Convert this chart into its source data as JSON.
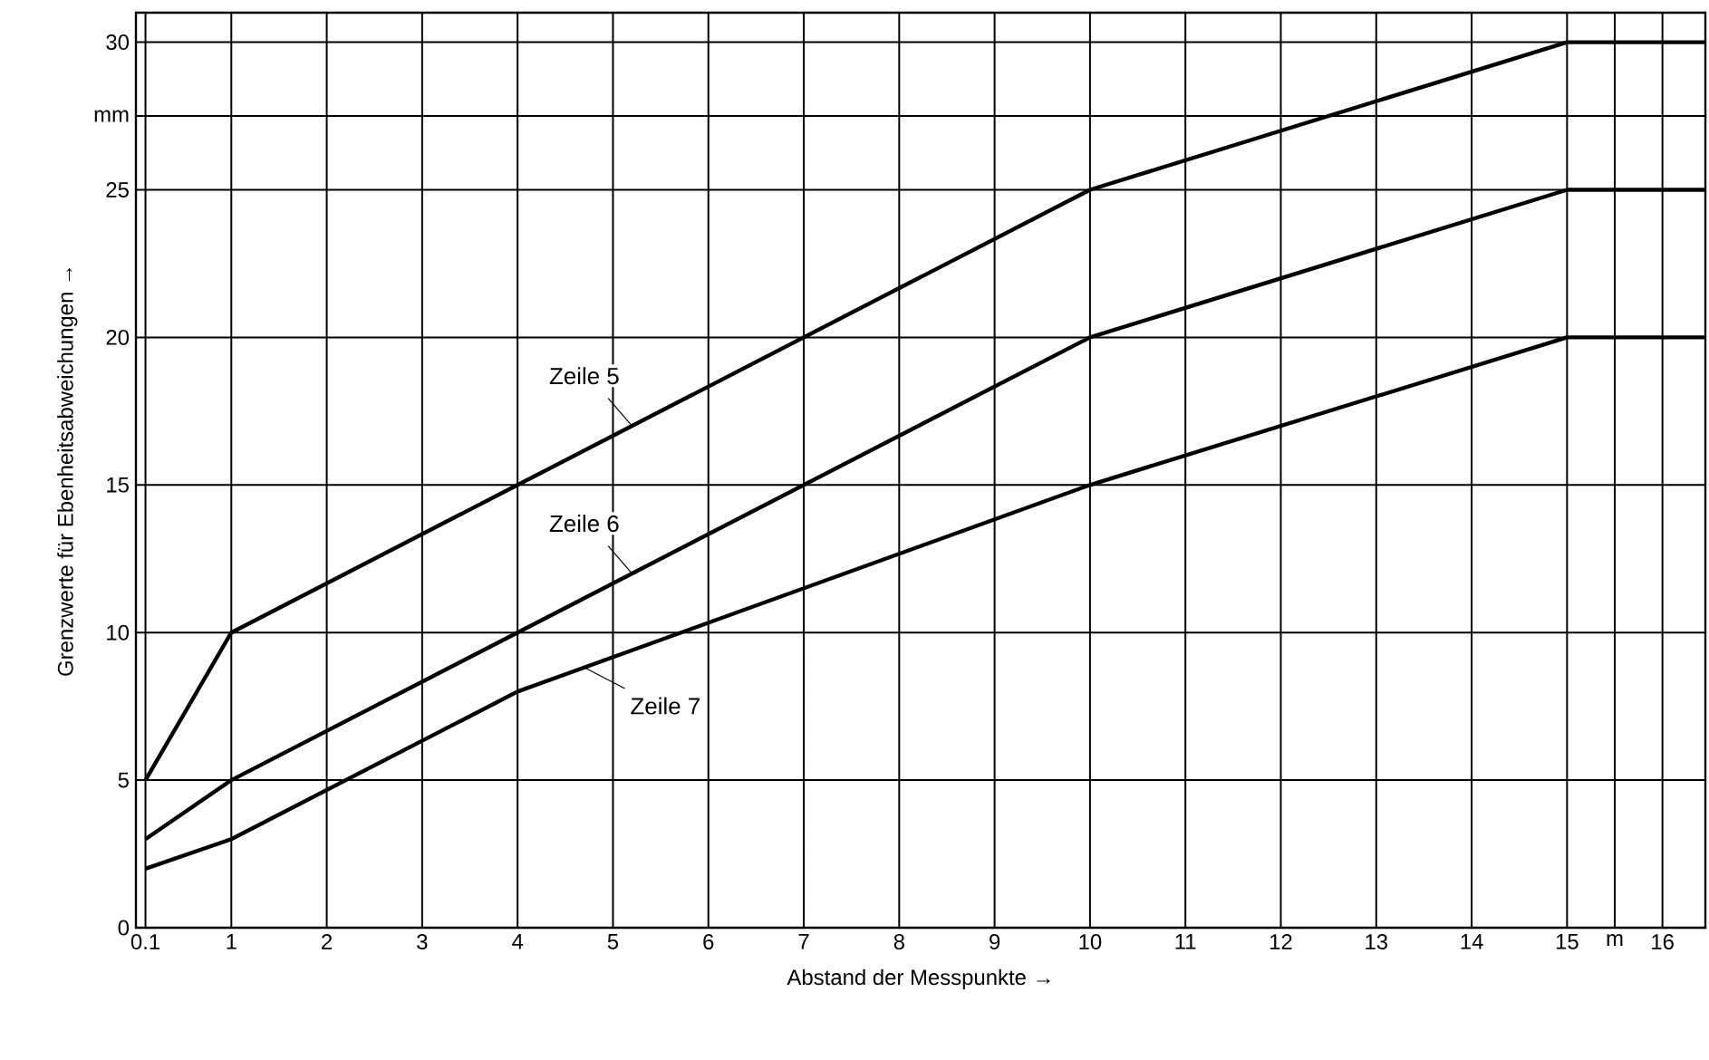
{
  "chart_data": {
    "type": "line",
    "xlabel": "Abstand der Messpunkte →",
    "ylabel": "Grenzwerte für Ebenheitsabweichungen →",
    "series": [
      {
        "name": "Zeile 5",
        "color": "#000000",
        "x": [
          0.1,
          1,
          4,
          10,
          15,
          16.45
        ],
        "values": [
          5,
          10,
          15,
          25,
          30,
          30
        ]
      },
      {
        "name": "Zeile 6",
        "color": "#000000",
        "x": [
          0.1,
          1,
          4,
          10,
          15,
          16.45
        ],
        "values": [
          3,
          5,
          10,
          20,
          25,
          25
        ]
      },
      {
        "name": "Zeile 7",
        "color": "#000000",
        "x": [
          0.1,
          1,
          4,
          10,
          15,
          16.45
        ],
        "values": [
          2,
          3,
          8,
          15,
          20,
          20
        ]
      }
    ],
    "ref_lines": [
      {
        "axis": "x",
        "value": 7,
        "line_style": "dashed"
      }
    ],
    "xlim": [
      0,
      16.45
    ],
    "ylim": [
      0,
      31
    ],
    "xticks": [
      0.1,
      1,
      2,
      3,
      4,
      5,
      6,
      7,
      8,
      9,
      10,
      11,
      12,
      13,
      14,
      15,
      {
        "value": 15.5,
        "label": "m"
      },
      16
    ],
    "yticks": [
      0,
      5,
      10,
      15,
      20,
      25,
      {
        "value": 27.5,
        "label": "mm"
      },
      30
    ],
    "grid": true,
    "legend": false,
    "marker": "none",
    "line_style": "solid"
  }
}
